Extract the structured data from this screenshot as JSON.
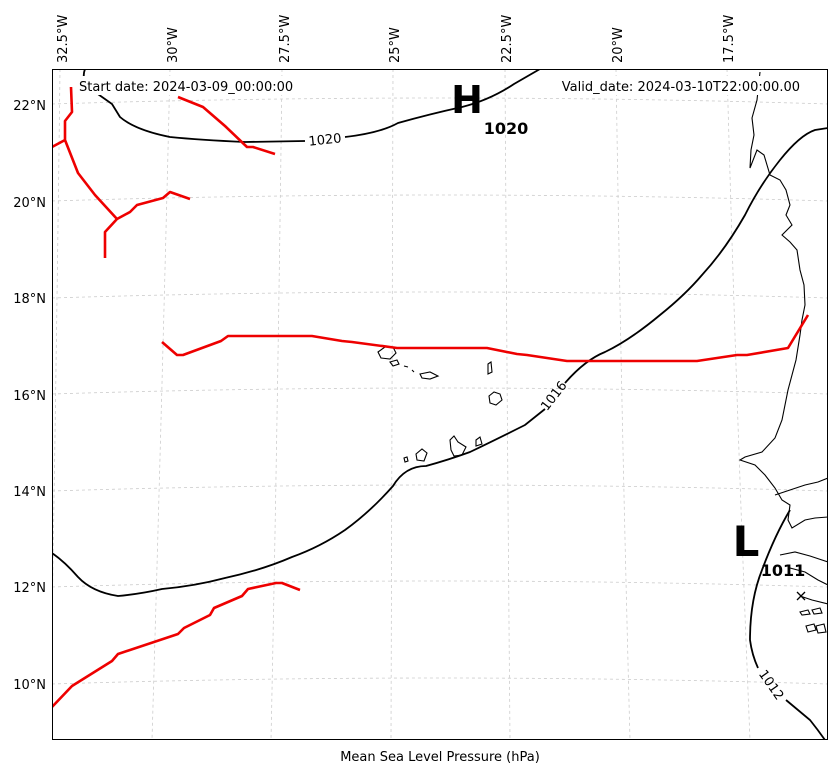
{
  "header": {
    "start_date": "Start date: 2024-03-09_00:00:00",
    "valid_date": "Valid_date: 2024-03-10T22:00:00.00"
  },
  "footer": {
    "xlabel": "Mean Sea Level Pressure (hPa)"
  },
  "lon_ticks": [
    "32.5°W",
    "30°W",
    "27.5°W",
    "25°W",
    "22.5°W",
    "20°W",
    "17.5°W"
  ],
  "lat_ticks": [
    "22°N",
    "20°N",
    "18°N",
    "16°N",
    "14°N",
    "12°N",
    "10°N"
  ],
  "isobar_labels": {
    "i1020": "1020",
    "i1016": "1016",
    "i1012": "1012"
  },
  "pressure_centers": {
    "high": {
      "letter": "H",
      "value": "1020"
    },
    "low": {
      "letter": "L",
      "value": "1011"
    }
  },
  "colors": {
    "front": "#ee0000",
    "isobar": "#000000",
    "grid": "#cccccc"
  }
}
